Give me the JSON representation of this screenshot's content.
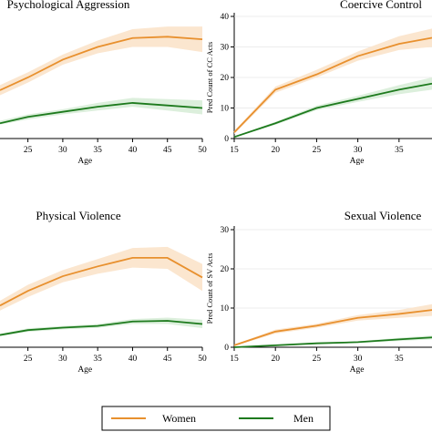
{
  "colors": {
    "women": "#e8902e",
    "women_band": "#fbe6cf",
    "men": "#1d7a1d",
    "men_band": "#dcefdc",
    "axis": "#000000",
    "grid": "#e6e6e6"
  },
  "legend": {
    "placement": "bottom-center",
    "items": [
      "Women",
      "Men"
    ]
  },
  "chart_data": [
    {
      "type": "line",
      "title": "Psychological Aggression",
      "xlabel": "Age",
      "ylabel": "",
      "x_ticks": [
        25,
        30,
        35,
        40,
        45,
        50
      ],
      "xlim": [
        21,
        50
      ],
      "ylim": [
        0,
        48
      ],
      "y_ticks": [],
      "series": [
        {
          "name": "Women",
          "x": [
            21,
            25,
            30,
            35,
            40,
            45,
            50
          ],
          "values": [
            19,
            24,
            31,
            36,
            39.5,
            40,
            39
          ],
          "lower": [
            17,
            22,
            29,
            33.5,
            36,
            36,
            34
          ],
          "upper": [
            21,
            26,
            33,
            38.5,
            43,
            44,
            44
          ]
        },
        {
          "name": "Men",
          "x": [
            21,
            25,
            30,
            35,
            40,
            45,
            50
          ],
          "values": [
            6,
            8.5,
            10.5,
            12.5,
            14,
            13,
            12
          ],
          "lower": [
            5.5,
            7.5,
            9.5,
            11,
            12.5,
            11,
            9.5
          ],
          "upper": [
            7,
            9.5,
            11.5,
            14,
            16,
            15.5,
            15
          ]
        }
      ]
    },
    {
      "type": "line",
      "title": "Coercive Control",
      "xlabel": "Age",
      "ylabel": "Pred Count of CC Acts",
      "x_ticks": [
        15,
        20,
        25,
        30,
        35
      ],
      "xlim": [
        15,
        39
      ],
      "ylim": [
        0,
        40
      ],
      "y_ticks": [
        0,
        10,
        20,
        30,
        40
      ],
      "series": [
        {
          "name": "Women",
          "x": [
            15,
            20,
            25,
            30,
            35,
            39
          ],
          "values": [
            2,
            16,
            21,
            27,
            31,
            33
          ],
          "lower": [
            1.5,
            15,
            20,
            25.5,
            29,
            30
          ],
          "upper": [
            2.5,
            17,
            22.5,
            28.5,
            33.5,
            36
          ]
        },
        {
          "name": "Men",
          "x": [
            15,
            20,
            25,
            30,
            35,
            39
          ],
          "values": [
            0.5,
            5,
            10,
            13,
            16,
            18
          ],
          "lower": [
            0.3,
            4.5,
            9.3,
            12,
            14.5,
            16
          ],
          "upper": [
            0.7,
            5.5,
            10.8,
            14,
            17.5,
            20
          ]
        }
      ]
    },
    {
      "type": "line",
      "title": "Physical Violence",
      "xlabel": "Age",
      "ylabel": "",
      "x_ticks": [
        25,
        30,
        35,
        40,
        45,
        50
      ],
      "xlim": [
        21,
        50
      ],
      "ylim": [
        0,
        48
      ],
      "y_ticks": [],
      "series": [
        {
          "name": "Women",
          "x": [
            21,
            25,
            30,
            35,
            40,
            45,
            50
          ],
          "values": [
            17,
            23,
            29,
            33,
            36.5,
            36.5,
            28.5
          ],
          "lower": [
            15,
            20.5,
            26.5,
            30,
            32.5,
            32,
            23
          ],
          "upper": [
            19,
            25.5,
            31.5,
            36,
            40.5,
            41,
            34
          ]
        },
        {
          "name": "Men",
          "x": [
            21,
            25,
            30,
            35,
            40,
            45,
            50
          ],
          "values": [
            5,
            7,
            8,
            8.7,
            10.5,
            10.8,
            9.5
          ],
          "lower": [
            4.5,
            6.3,
            7.3,
            7.9,
            9.5,
            9.5,
            7.8
          ],
          "upper": [
            5.5,
            7.7,
            8.7,
            9.5,
            11.5,
            12.1,
            11.2
          ]
        }
      ]
    },
    {
      "type": "line",
      "title": "Sexual Violence",
      "xlabel": "Age",
      "ylabel": "Pred Count of SV Acts",
      "x_ticks": [
        15,
        20,
        25,
        30,
        35
      ],
      "xlim": [
        15,
        39
      ],
      "ylim": [
        0,
        30
      ],
      "y_ticks": [
        0,
        10,
        20,
        30
      ],
      "series": [
        {
          "name": "Women",
          "x": [
            15,
            20,
            25,
            30,
            35,
            39
          ],
          "values": [
            0.5,
            4,
            5.5,
            7.5,
            8.5,
            9.5
          ],
          "lower": [
            0.3,
            3.5,
            5,
            6.8,
            7.5,
            8
          ],
          "upper": [
            0.7,
            4.5,
            6,
            8.2,
            9.5,
            11
          ]
        },
        {
          "name": "Men",
          "x": [
            15,
            20,
            25,
            30,
            35,
            39
          ],
          "values": [
            0,
            0.5,
            1,
            1.3,
            2,
            2.5
          ],
          "lower": [
            0,
            0.3,
            0.8,
            1.1,
            1.6,
            2
          ],
          "upper": [
            0.1,
            0.7,
            1.2,
            1.5,
            2.4,
            3
          ]
        }
      ]
    }
  ]
}
